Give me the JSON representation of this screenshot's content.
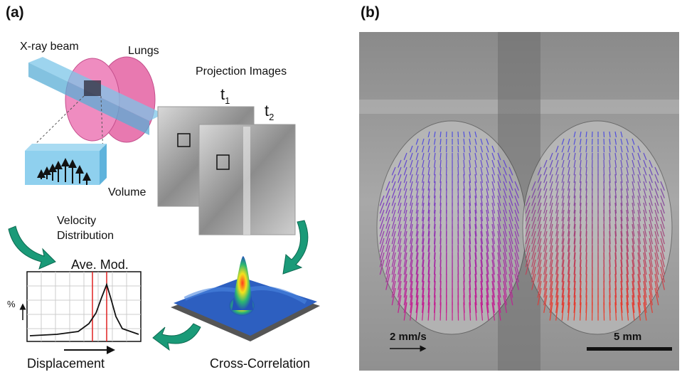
{
  "panel_a": {
    "label": "(a)",
    "beam_label": "X-ray beam",
    "lungs_label": "Lungs",
    "projection_label": "Projection Images",
    "t1": {
      "base": "t",
      "sub": "1"
    },
    "t2": {
      "base": "t",
      "sub": "2"
    },
    "volume_label": "Volume",
    "velocity_label": [
      "Velocity",
      "Distribution"
    ],
    "graph_title": "Ave. Mod.",
    "graph_y_label": "%",
    "graph_x_label": "Displacement",
    "correlation_label": "Cross-Correlation"
  },
  "panel_b": {
    "label": "(b)",
    "velocity_scale": "2 mm/s",
    "length_scale": "5 mm"
  }
}
